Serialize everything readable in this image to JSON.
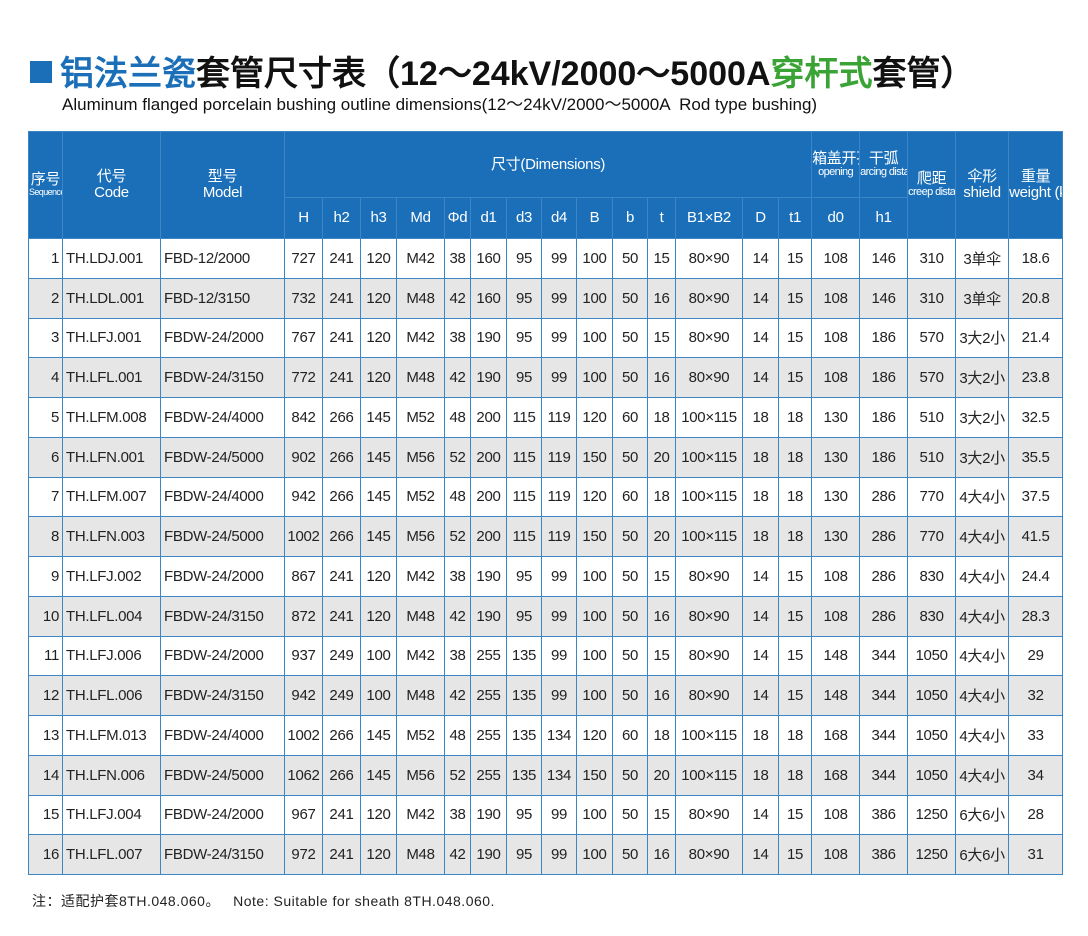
{
  "header": {
    "title": {
      "part1": "铝法兰瓷",
      "part2": "套管尺寸表（12～24kV/2000～5000A",
      "part3": "穿杆式",
      "part4": "套管）"
    },
    "subtitle": "Aluminum flanged porcelain bushing outline dimensions(12～24kV/2000～5000A  Rod type bushing)"
  },
  "table": {
    "head": {
      "number": {
        "zh": "序号",
        "en": "Sequence Number"
      },
      "code": {
        "zh": "代号",
        "en": "Code"
      },
      "model": {
        "zh": "型号",
        "en": "Model"
      },
      "dimensions": "尺寸(Dimensions)",
      "opening": {
        "zh": "箱盖开孔",
        "en": "opening"
      },
      "arcing": {
        "zh": "干弧",
        "en": "arcing distance"
      },
      "creep": {
        "zh": "爬距",
        "en": "creep distance"
      },
      "shield": {
        "zh": "伞形",
        "en": "shield"
      },
      "weight": {
        "zh": "重量",
        "en": "weight (kg)"
      },
      "sub": [
        "H",
        "h2",
        "h3",
        "Md",
        "Φd",
        "d1",
        "d3",
        "d4",
        "B",
        "b",
        "t",
        "B1×B2",
        "D",
        "t1",
        "d0",
        "h1"
      ]
    },
    "rows": [
      [
        1,
        "TH.LDJ.001",
        "FBD-12/2000",
        727,
        241,
        120,
        "M42",
        38,
        160,
        95,
        99,
        100,
        50,
        15,
        "80×90",
        14,
        15,
        108,
        146,
        310,
        "3单伞",
        18.6
      ],
      [
        2,
        "TH.LDL.001",
        "FBD-12/3150",
        732,
        241,
        120,
        "M48",
        42,
        160,
        95,
        99,
        100,
        50,
        16,
        "80×90",
        14,
        15,
        108,
        146,
        310,
        "3单伞",
        20.8
      ],
      [
        3,
        "TH.LFJ.001",
        "FBDW-24/2000",
        767,
        241,
        120,
        "M42",
        38,
        190,
        95,
        99,
        100,
        50,
        15,
        "80×90",
        14,
        15,
        108,
        186,
        570,
        "3大2小",
        21.4
      ],
      [
        4,
        "TH.LFL.001",
        "FBDW-24/3150",
        772,
        241,
        120,
        "M48",
        42,
        190,
        95,
        99,
        100,
        50,
        16,
        "80×90",
        14,
        15,
        108,
        186,
        570,
        "3大2小",
        23.8
      ],
      [
        5,
        "TH.LFM.008",
        "FBDW-24/4000",
        842,
        266,
        145,
        "M52",
        48,
        200,
        115,
        119,
        120,
        60,
        18,
        "100×115",
        18,
        18,
        130,
        186,
        510,
        "3大2小",
        32.5
      ],
      [
        6,
        "TH.LFN.001",
        "FBDW-24/5000",
        902,
        266,
        145,
        "M56",
        52,
        200,
        115,
        119,
        150,
        50,
        20,
        "100×115",
        18,
        18,
        130,
        186,
        510,
        "3大2小",
        35.5
      ],
      [
        7,
        "TH.LFM.007",
        "FBDW-24/4000",
        942,
        266,
        145,
        "M52",
        48,
        200,
        115,
        119,
        120,
        60,
        18,
        "100×115",
        18,
        18,
        130,
        286,
        770,
        "4大4小",
        37.5
      ],
      [
        8,
        "TH.LFN.003",
        "FBDW-24/5000",
        1002,
        266,
        145,
        "M56",
        52,
        200,
        115,
        119,
        150,
        50,
        20,
        "100×115",
        18,
        18,
        130,
        286,
        770,
        "4大4小",
        41.5
      ],
      [
        9,
        "TH.LFJ.002",
        "FBDW-24/2000",
        867,
        241,
        120,
        "M42",
        38,
        190,
        95,
        99,
        100,
        50,
        15,
        "80×90",
        14,
        15,
        108,
        286,
        830,
        "4大4小",
        24.4
      ],
      [
        10,
        "TH.LFL.004",
        "FBDW-24/3150",
        872,
        241,
        120,
        "M48",
        42,
        190,
        95,
        99,
        100,
        50,
        16,
        "80×90",
        14,
        15,
        108,
        286,
        830,
        "4大4小",
        28.3
      ],
      [
        11,
        "TH.LFJ.006",
        "FBDW-24/2000",
        937,
        249,
        100,
        "M42",
        38,
        255,
        135,
        99,
        100,
        50,
        15,
        "80×90",
        14,
        15,
        148,
        344,
        1050,
        "4大4小",
        29
      ],
      [
        12,
        "TH.LFL.006",
        "FBDW-24/3150",
        942,
        249,
        100,
        "M48",
        42,
        255,
        135,
        99,
        100,
        50,
        16,
        "80×90",
        14,
        15,
        148,
        344,
        1050,
        "4大4小",
        32
      ],
      [
        13,
        "TH.LFM.013",
        "FBDW-24/4000",
        1002,
        266,
        145,
        "M52",
        48,
        255,
        135,
        134,
        120,
        60,
        18,
        "100×115",
        18,
        18,
        168,
        344,
        1050,
        "4大4小",
        33
      ],
      [
        14,
        "TH.LFN.006",
        "FBDW-24/5000",
        1062,
        266,
        145,
        "M56",
        52,
        255,
        135,
        134,
        150,
        50,
        20,
        "100×115",
        18,
        18,
        168,
        344,
        1050,
        "4大4小",
        34
      ],
      [
        15,
        "TH.LFJ.004",
        "FBDW-24/2000",
        967,
        241,
        120,
        "M42",
        38,
        190,
        95,
        99,
        100,
        50,
        15,
        "80×90",
        14,
        15,
        108,
        386,
        1250,
        "6大6小",
        28
      ],
      [
        16,
        "TH.LFL.007",
        "FBDW-24/3150",
        972,
        241,
        120,
        "M48",
        42,
        190,
        95,
        99,
        100,
        50,
        16,
        "80×90",
        14,
        15,
        108,
        386,
        1250,
        "6大6小",
        31
      ]
    ]
  },
  "note": {
    "zh": "注：适配护套8TH.048.060。",
    "en": "Note: Suitable for sheath 8TH.048.060."
  }
}
